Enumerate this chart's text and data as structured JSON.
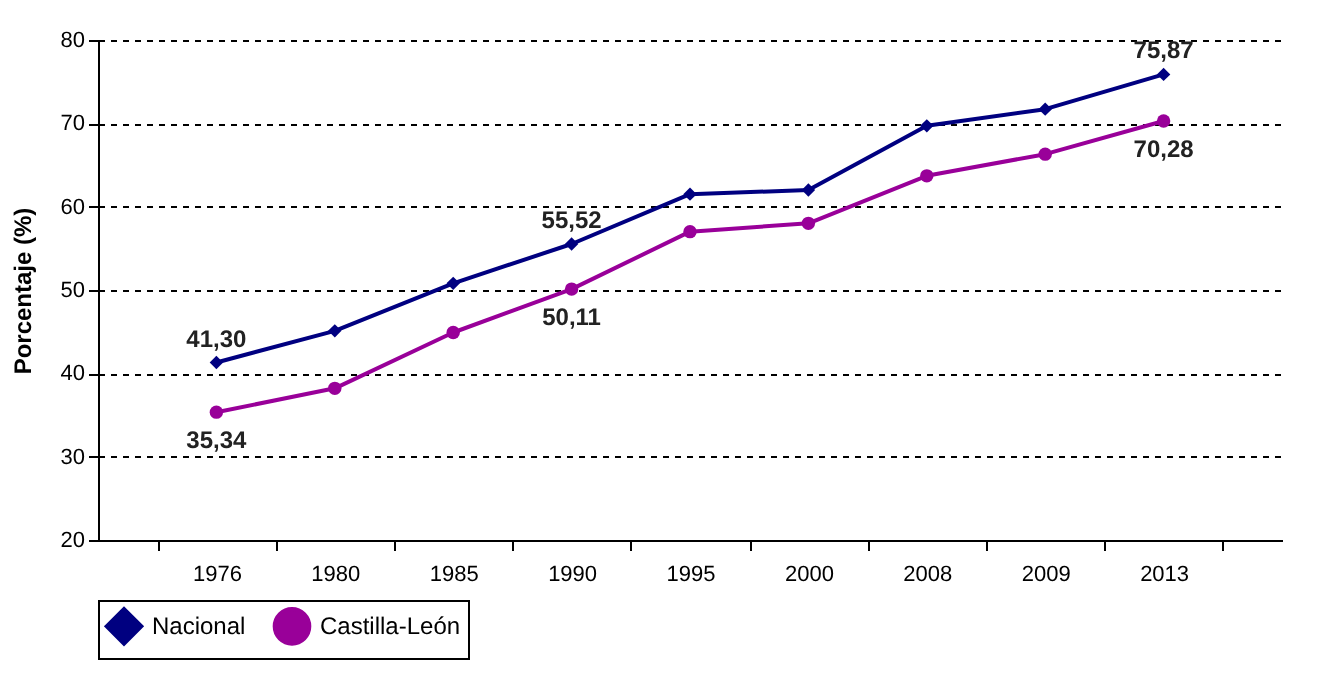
{
  "chart_data": {
    "type": "line",
    "ylabel": "Porcentaje (%)",
    "categories": [
      "1976",
      "1980",
      "1985",
      "1990",
      "1995",
      "2000",
      "2008",
      "2009",
      "2013"
    ],
    "series": [
      {
        "name": "Nacional",
        "color": "#000080",
        "marker": "diamond",
        "values": [
          41.3,
          45.1,
          50.8,
          55.52,
          61.5,
          62.0,
          69.7,
          71.7,
          75.87
        ],
        "value_labels": [
          "41,30",
          null,
          null,
          "55,52",
          null,
          null,
          null,
          null,
          "75,87"
        ]
      },
      {
        "name": "Castilla-León",
        "color": "#990099",
        "marker": "circle",
        "values": [
          35.34,
          38.2,
          44.9,
          50.11,
          57.0,
          58.0,
          63.7,
          66.3,
          70.28
        ],
        "value_labels": [
          "35,34",
          null,
          null,
          "50,11",
          null,
          null,
          null,
          null,
          "70,28"
        ]
      }
    ],
    "ylim": [
      20,
      80
    ],
    "yticks": [
      20,
      30,
      40,
      50,
      60,
      70,
      80
    ],
    "grid": "y",
    "legend": "bottom",
    "line_style": "solid"
  }
}
